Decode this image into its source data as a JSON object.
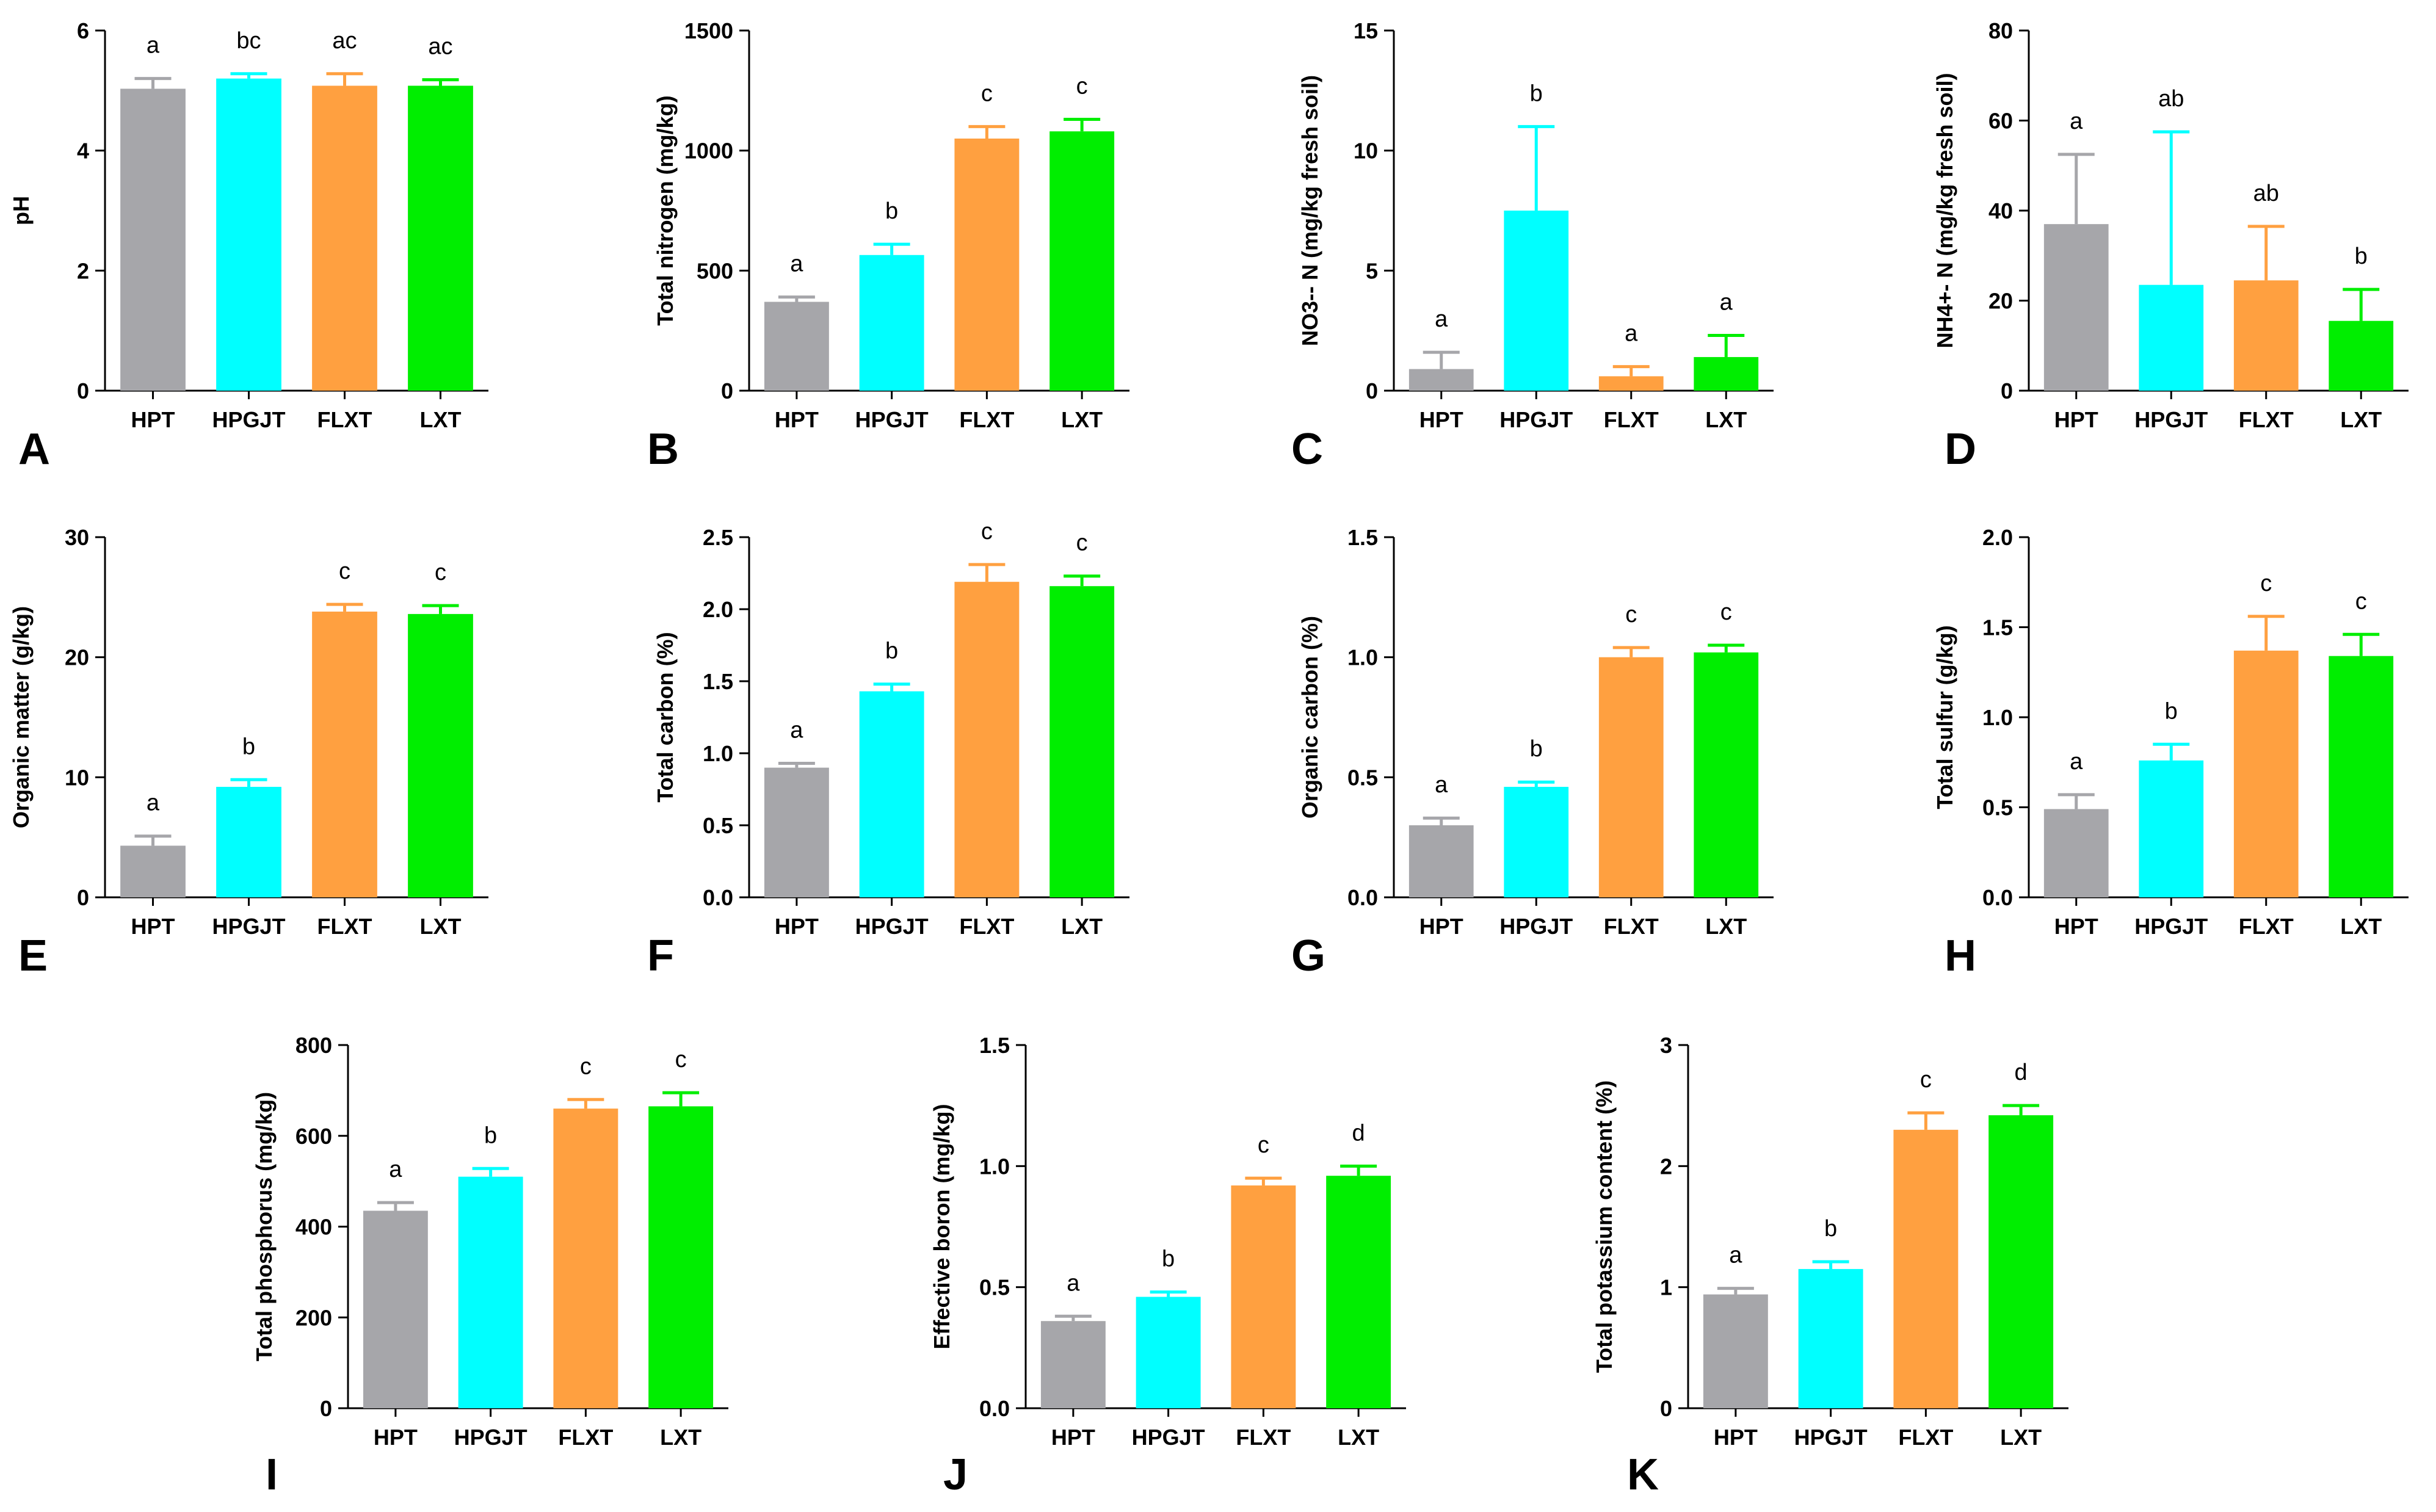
{
  "figure": {
    "categories": [
      "HPT",
      "HPGJT",
      "FLXT",
      "LXT"
    ]
  },
  "colors": {
    "HPT": "#A6A6AA",
    "HPGJT": "#00FFFF",
    "FLXT": "#FFA040",
    "LXT": "#00EE00"
  },
  "chart_data": [
    {
      "panel": "A",
      "type": "bar",
      "ylabel": "pH",
      "ylim": [
        0,
        6
      ],
      "ticks": [
        0,
        2,
        4,
        6
      ],
      "tick_labels": [
        "0",
        "2",
        "4",
        "6"
      ],
      "categories": [
        "HPT",
        "HPGJT",
        "FLXT",
        "LXT"
      ],
      "values": [
        5.03,
        5.2,
        5.08,
        5.08
      ],
      "errors": [
        0.17,
        0.08,
        0.2,
        0.1
      ],
      "significance": [
        "a",
        "bc",
        "ac",
        "ac"
      ]
    },
    {
      "panel": "B",
      "type": "bar",
      "ylabel": "Total nitrogen (mg/kg)",
      "ylim": [
        0,
        1500
      ],
      "ticks": [
        0,
        500,
        1000,
        1500
      ],
      "tick_labels": [
        "0",
        "500",
        "1000",
        "1500"
      ],
      "categories": [
        "HPT",
        "HPGJT",
        "FLXT",
        "LXT"
      ],
      "values": [
        370,
        565,
        1050,
        1080
      ],
      "errors": [
        20,
        45,
        50,
        50
      ],
      "significance": [
        "a",
        "b",
        "c",
        "c"
      ]
    },
    {
      "panel": "C",
      "type": "bar",
      "ylabel": "NO3-- N (mg/kg fresh soil)",
      "ylim": [
        0,
        15
      ],
      "ticks": [
        0,
        5,
        10,
        15
      ],
      "tick_labels": [
        "0",
        "5",
        "10",
        "15"
      ],
      "categories": [
        "HPT",
        "HPGJT",
        "FLXT",
        "LXT"
      ],
      "values": [
        0.9,
        7.5,
        0.6,
        1.4
      ],
      "errors": [
        0.7,
        3.5,
        0.4,
        0.9
      ],
      "significance": [
        "a",
        "b",
        "a",
        "a"
      ]
    },
    {
      "panel": "D",
      "type": "bar",
      "ylabel": "NH4+- N (mg/kg fresh soil)",
      "ylim": [
        0,
        80
      ],
      "ticks": [
        0,
        20,
        40,
        60,
        80
      ],
      "tick_labels": [
        "0",
        "20",
        "40",
        "60",
        "80"
      ],
      "categories": [
        "HPT",
        "HPGJT",
        "FLXT",
        "LXT"
      ],
      "values": [
        37,
        23.5,
        24.5,
        15.5
      ],
      "errors": [
        15.5,
        34,
        12,
        7
      ],
      "significance": [
        "a",
        "ab",
        "ab",
        "b"
      ]
    },
    {
      "panel": "E",
      "type": "bar",
      "ylabel": "Organic matter (g/kg)",
      "ylim": [
        0,
        30
      ],
      "ticks": [
        0,
        10,
        20,
        30
      ],
      "tick_labels": [
        "0",
        "10",
        "20",
        "30"
      ],
      "categories": [
        "HPT",
        "HPGJT",
        "FLXT",
        "LXT"
      ],
      "values": [
        4.3,
        9.2,
        23.8,
        23.6
      ],
      "errors": [
        0.8,
        0.6,
        0.6,
        0.7
      ],
      "significance": [
        "a",
        "b",
        "c",
        "c"
      ]
    },
    {
      "panel": "F",
      "type": "bar",
      "ylabel": "Total carbon (%)",
      "ylim": [
        0,
        2.5
      ],
      "ticks": [
        0,
        0.5,
        1,
        1.5,
        2,
        2.5
      ],
      "tick_labels": [
        "0.0",
        "0.5",
        "1.0",
        "1.5",
        "2.0",
        "2.5"
      ],
      "categories": [
        "HPT",
        "HPGJT",
        "FLXT",
        "LXT"
      ],
      "values": [
        0.9,
        1.43,
        2.19,
        2.16
      ],
      "errors": [
        0.03,
        0.05,
        0.12,
        0.07
      ],
      "significance": [
        "a",
        "b",
        "c",
        "c"
      ]
    },
    {
      "panel": "G",
      "type": "bar",
      "ylabel": "Organic carbon (%)",
      "ylim": [
        0,
        1.5
      ],
      "ticks": [
        0,
        0.5,
        1,
        1.5
      ],
      "tick_labels": [
        "0.0",
        "0.5",
        "1.0",
        "1.5"
      ],
      "categories": [
        "HPT",
        "HPGJT",
        "FLXT",
        "LXT"
      ],
      "values": [
        0.3,
        0.46,
        1.0,
        1.02
      ],
      "errors": [
        0.03,
        0.02,
        0.04,
        0.03
      ],
      "significance": [
        "a",
        "b",
        "c",
        "c"
      ]
    },
    {
      "panel": "H",
      "type": "bar",
      "ylabel": "Total sulfur (g/kg)",
      "ylim": [
        0,
        2
      ],
      "ticks": [
        0,
        0.5,
        1,
        1.5,
        2
      ],
      "tick_labels": [
        "0.0",
        "0.5",
        "1.0",
        "1.5",
        "2.0"
      ],
      "categories": [
        "HPT",
        "HPGJT",
        "FLXT",
        "LXT"
      ],
      "values": [
        0.49,
        0.76,
        1.37,
        1.34
      ],
      "errors": [
        0.08,
        0.09,
        0.19,
        0.12
      ],
      "significance": [
        "a",
        "b",
        "c",
        "c"
      ]
    },
    {
      "panel": "I",
      "type": "bar",
      "ylabel": "Total phosphorus (mg/kg)",
      "ylim": [
        0,
        800
      ],
      "ticks": [
        0,
        200,
        400,
        600,
        800
      ],
      "tick_labels": [
        "0",
        "200",
        "400",
        "600",
        "800"
      ],
      "categories": [
        "HPT",
        "HPGJT",
        "FLXT",
        "LXT"
      ],
      "values": [
        435,
        510,
        660,
        665
      ],
      "errors": [
        18,
        18,
        20,
        30
      ],
      "significance": [
        "a",
        "b",
        "c",
        "c"
      ]
    },
    {
      "panel": "J",
      "type": "bar",
      "ylabel": "Effective boron (mg/kg)",
      "ylim": [
        0,
        1.5
      ],
      "ticks": [
        0,
        0.5,
        1,
        1.5
      ],
      "tick_labels": [
        "0.0",
        "0.5",
        "1.0",
        "1.5"
      ],
      "categories": [
        "HPT",
        "HPGJT",
        "FLXT",
        "LXT"
      ],
      "values": [
        0.36,
        0.46,
        0.92,
        0.96
      ],
      "errors": [
        0.02,
        0.02,
        0.03,
        0.04
      ],
      "significance": [
        "a",
        "b",
        "c",
        "d"
      ]
    },
    {
      "panel": "K",
      "type": "bar",
      "ylabel": "Total potassium content (%)",
      "ylim": [
        0,
        3
      ],
      "ticks": [
        0,
        1,
        2,
        3
      ],
      "tick_labels": [
        "0",
        "1",
        "2",
        "3"
      ],
      "categories": [
        "HPT",
        "HPGJT",
        "FLXT",
        "LXT"
      ],
      "values": [
        0.94,
        1.15,
        2.3,
        2.42
      ],
      "errors": [
        0.05,
        0.06,
        0.14,
        0.08
      ],
      "significance": [
        "a",
        "b",
        "c",
        "d"
      ]
    }
  ]
}
